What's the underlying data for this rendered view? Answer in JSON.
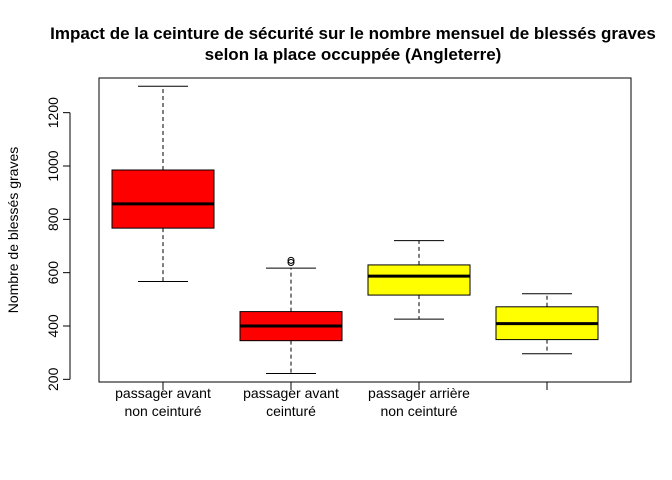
{
  "chart_data": {
    "type": "boxplot",
    "title_lines": [
      "Impact de la ceinture de sécurité sur le nombre mensuel de blessés graves",
      "selon la place occuppée (Angleterre)"
    ],
    "xlabel": "",
    "ylabel": "Nombre de blessés graves",
    "ylim": [
      190,
      1330
    ],
    "y_ticks": [
      "200",
      "400",
      "600",
      "800",
      "1000",
      "1200"
    ],
    "grid": false,
    "groups": [
      {
        "label_lines": [
          "passager avant",
          "non ceinturé"
        ],
        "color": "#ff0000",
        "whisker_low": 567,
        "q1": 767,
        "median": 858,
        "q3": 985,
        "whisker_high": 1299,
        "outliers": []
      },
      {
        "label_lines": [
          "passager avant",
          "ceinturé"
        ],
        "color": "#ff0000",
        "whisker_low": 222,
        "q1": 345,
        "median": 400,
        "q3": 454,
        "whisker_high": 617,
        "outliers": [
          638,
          646
        ]
      },
      {
        "label_lines": [
          "passager arrière",
          "non ceinturé"
        ],
        "color": "#ffff00",
        "whisker_low": 426,
        "q1": 516,
        "median": 587,
        "q3": 629,
        "whisker_high": 720,
        "outliers": []
      },
      {
        "label_lines": [
          "",
          ""
        ],
        "color": "#ffff00",
        "whisker_low": 296,
        "q1": 349,
        "median": 409,
        "q3": 472,
        "whisker_high": 521,
        "outliers": []
      }
    ]
  }
}
